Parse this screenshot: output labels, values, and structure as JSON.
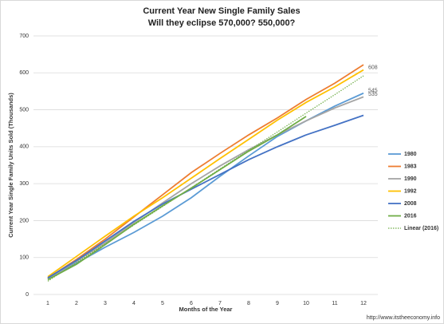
{
  "chart_data": {
    "type": "line",
    "title": "Current Year New Single Family Sales",
    "subtitle": "Will they eclipse 570,000? 550,000?",
    "x_label": "Months of the Year",
    "y_label": "Current Year Single Family Units Sold (Thousands)",
    "source": "http://www.itstheeconomy.info",
    "categories": [
      "1",
      "2",
      "3",
      "4",
      "5",
      "6",
      "7",
      "8",
      "9",
      "10",
      "11",
      "12"
    ],
    "ylim": [
      0,
      700
    ],
    "yticks": [
      0,
      100,
      200,
      300,
      400,
      500,
      600,
      700
    ],
    "grid": true,
    "legend": "right",
    "series": [
      {
        "name": "1980",
        "color": "#5b9bd5",
        "values": [
          43,
          85,
          128,
          168,
          212,
          262,
          320,
          375,
          428,
          470,
          510,
          545
        ],
        "value_labels": [
          null,
          null,
          null,
          null,
          null,
          null,
          null,
          null,
          null,
          null,
          null,
          "545"
        ]
      },
      {
        "name": "1983",
        "color": "#ed7d31",
        "values": [
          44,
          95,
          150,
          210,
          270,
          330,
          382,
          432,
          478,
          528,
          572,
          622
        ]
      },
      {
        "name": "1990",
        "color": "#a5a5a5",
        "values": [
          42,
          90,
          140,
          195,
          248,
          300,
          348,
          392,
          432,
          470,
          505,
          535
        ],
        "value_labels": [
          null,
          null,
          null,
          null,
          null,
          null,
          null,
          null,
          null,
          null,
          null,
          "535"
        ]
      },
      {
        "name": "1992",
        "color": "#ffc000",
        "values": [
          48,
          103,
          158,
          212,
          262,
          315,
          368,
          420,
          472,
          520,
          562,
          608
        ],
        "value_labels": [
          null,
          null,
          null,
          null,
          null,
          null,
          null,
          null,
          null,
          null,
          null,
          "608"
        ]
      },
      {
        "name": "2008",
        "color": "#4472c4",
        "values": [
          45,
          92,
          145,
          198,
          245,
          285,
          325,
          365,
          400,
          432,
          458,
          485
        ]
      },
      {
        "name": "2016",
        "color": "#70ad47",
        "values": [
          40,
          82,
          135,
          190,
          240,
          288,
          338,
          388,
          432,
          482,
          null,
          null
        ]
      },
      {
        "name": "Linear (2016)",
        "color": "#70ad47",
        "dashed": true,
        "values": [
          36,
          87,
          137,
          188,
          238,
          289,
          340,
          390,
          440,
          491,
          541,
          592
        ]
      }
    ]
  }
}
